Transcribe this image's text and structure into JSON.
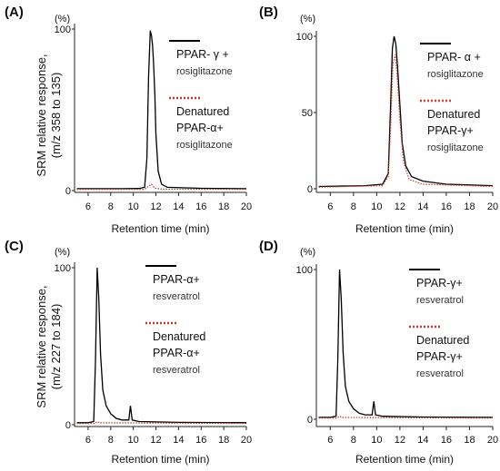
{
  "figure": {
    "ylabel_top": [
      "SRM relative response,",
      "(m/z 358 to 135)"
    ],
    "ylabel_bottom": [
      "SRM relative response,",
      "(m/z 227 to 184)"
    ]
  },
  "chart_data": [
    {
      "panel": "(A)",
      "type": "line",
      "title": "",
      "xlabel": "Retention time (min)",
      "ylabel": "(%)",
      "xlim": [
        4.8,
        20
      ],
      "ylim": [
        0,
        100
      ],
      "x_ticks": [
        6,
        8,
        10,
        12,
        14,
        16,
        18,
        20
      ],
      "y_ticks": [
        0,
        100
      ],
      "legend_position": "right",
      "series": [
        {
          "name": "PPAR- γ + rosiglitazone",
          "legend_lines": [
            "PPAR- γ +",
            "rosiglitazone"
          ],
          "color": "#000000",
          "style": "solid",
          "points": [
            [
              5.0,
              1.2
            ],
            [
              7.0,
              1.2
            ],
            [
              9.0,
              1.2
            ],
            [
              10.5,
              1.3
            ],
            [
              11.0,
              2.0
            ],
            [
              11.2,
              20
            ],
            [
              11.35,
              70
            ],
            [
              11.5,
              99
            ],
            [
              11.6,
              96
            ],
            [
              11.7,
              90
            ],
            [
              11.8,
              78
            ],
            [
              11.9,
              60
            ],
            [
              12.0,
              35
            ],
            [
              12.2,
              12
            ],
            [
              12.5,
              4
            ],
            [
              13.0,
              2
            ],
            [
              16.0,
              1.4
            ],
            [
              20.0,
              1.2
            ]
          ]
        },
        {
          "name": "Denatured PPAR-α+ rosiglitazone",
          "legend_lines": [
            "Denatured",
            "PPAR-α+",
            "rosiglitazone"
          ],
          "color": "#c0392b",
          "style": "dotted",
          "points": [
            [
              5.0,
              0.8
            ],
            [
              11.0,
              0.8
            ],
            [
              11.4,
              3
            ],
            [
              11.6,
              4
            ],
            [
              11.9,
              1.5
            ],
            [
              12.5,
              0.9
            ],
            [
              20.0,
              0.8
            ]
          ]
        }
      ]
    },
    {
      "panel": "(B)",
      "type": "line",
      "title": "",
      "xlabel": "Retention time (min)",
      "ylabel": "(%)",
      "xlim": [
        4.8,
        20
      ],
      "ylim": [
        0,
        100
      ],
      "x_ticks": [
        6,
        8,
        10,
        12,
        14,
        16,
        18,
        20
      ],
      "y_ticks": [
        0,
        50,
        100
      ],
      "legend_position": "right",
      "series": [
        {
          "name": "PPAR- α + rosiglitazone",
          "legend_lines": [
            "PPAR- α +",
            "rosiglitazone"
          ],
          "color": "#000000",
          "style": "solid",
          "points": [
            [
              5.0,
              1.5
            ],
            [
              9.0,
              2
            ],
            [
              10.5,
              3
            ],
            [
              11.0,
              10
            ],
            [
              11.2,
              55
            ],
            [
              11.35,
              92
            ],
            [
              11.5,
              100
            ],
            [
              11.65,
              95
            ],
            [
              11.8,
              80
            ],
            [
              12.0,
              55
            ],
            [
              12.2,
              30
            ],
            [
              12.5,
              15
            ],
            [
              13.0,
              8
            ],
            [
              14.0,
              5
            ],
            [
              16.0,
              3
            ],
            [
              20.0,
              2
            ]
          ]
        },
        {
          "name": "Denatured PPAR-γ+ rosiglitazone",
          "legend_lines": [
            "Denatured",
            "PPAR-γ+",
            "rosiglitazone"
          ],
          "color": "#d04030",
          "style": "dotted",
          "points": [
            [
              5.0,
              1
            ],
            [
              10.5,
              2
            ],
            [
              11.0,
              8
            ],
            [
              11.2,
              40
            ],
            [
              11.4,
              82
            ],
            [
              11.6,
              88
            ],
            [
              11.8,
              70
            ],
            [
              12.0,
              45
            ],
            [
              12.3,
              18
            ],
            [
              12.8,
              6
            ],
            [
              14.0,
              3
            ],
            [
              20.0,
              1.5
            ]
          ]
        }
      ]
    },
    {
      "panel": "(C)",
      "type": "line",
      "title": "",
      "xlabel": "Retention time (min)",
      "ylabel": "(%)",
      "xlim": [
        4.8,
        20
      ],
      "ylim": [
        0,
        100
      ],
      "x_ticks": [
        6,
        8,
        10,
        12,
        14,
        16,
        18,
        20
      ],
      "y_ticks": [
        0,
        100
      ],
      "legend_position": "right",
      "series": [
        {
          "name": "PPAR-α+ resveratrol",
          "legend_lines": [
            "PPAR-α+",
            "resveratrol"
          ],
          "color": "#000000",
          "style": "solid",
          "points": [
            [
              5.0,
              1.3
            ],
            [
              6.0,
              1.3
            ],
            [
              6.5,
              2
            ],
            [
              6.65,
              40
            ],
            [
              6.8,
              100
            ],
            [
              6.95,
              80
            ],
            [
              7.1,
              45
            ],
            [
              7.3,
              22
            ],
            [
              7.6,
              12
            ],
            [
              8.0,
              7
            ],
            [
              8.5,
              4
            ],
            [
              9.0,
              3
            ],
            [
              9.6,
              3
            ],
            [
              9.75,
              12
            ],
            [
              9.9,
              3
            ],
            [
              10.5,
              2
            ],
            [
              14.0,
              1.5
            ],
            [
              20.0,
              1.3
            ]
          ]
        },
        {
          "name": "Denatured PPAR-α+ resveratrol",
          "legend_lines": [
            "Denatured",
            "PPAR-α+",
            "resveratrol"
          ],
          "color": "#c0392b",
          "style": "dotted",
          "points": [
            [
              5.0,
              0.8
            ],
            [
              6.6,
              0.8
            ],
            [
              6.8,
              2
            ],
            [
              7.0,
              1.2
            ],
            [
              20.0,
              0.8
            ]
          ]
        }
      ]
    },
    {
      "panel": "(D)",
      "type": "line",
      "title": "",
      "xlabel": "Retention time (min)",
      "ylabel": "(%)",
      "xlim": [
        4.8,
        20
      ],
      "ylim": [
        0,
        100
      ],
      "x_ticks": [
        6,
        8,
        10,
        12,
        14,
        16,
        18,
        20
      ],
      "y_ticks": [
        0,
        100
      ],
      "legend_position": "right",
      "series": [
        {
          "name": "PPAR-γ+ resveratrol",
          "legend_lines": [
            "PPAR-γ+",
            "resveratrol"
          ],
          "color": "#000000",
          "style": "solid",
          "points": [
            [
              5.0,
              1.3
            ],
            [
              6.0,
              1.3
            ],
            [
              6.5,
              2
            ],
            [
              6.65,
              40
            ],
            [
              6.8,
              100
            ],
            [
              6.95,
              80
            ],
            [
              7.1,
              45
            ],
            [
              7.3,
              22
            ],
            [
              7.6,
              12
            ],
            [
              8.0,
              7
            ],
            [
              8.5,
              4
            ],
            [
              9.0,
              3
            ],
            [
              9.6,
              3
            ],
            [
              9.75,
              12
            ],
            [
              9.9,
              3
            ],
            [
              10.5,
              2
            ],
            [
              14.0,
              1.5
            ],
            [
              20.0,
              1.3
            ]
          ]
        },
        {
          "name": "Denatured PPAR-γ+ resveratrol",
          "legend_lines": [
            "Denatured",
            "PPAR-γ+",
            "resveratrol"
          ],
          "color": "#c0392b",
          "style": "dotted",
          "points": [
            [
              5.0,
              0.8
            ],
            [
              6.6,
              0.8
            ],
            [
              6.8,
              2
            ],
            [
              7.0,
              1.2
            ],
            [
              20.0,
              0.8
            ]
          ]
        }
      ]
    }
  ]
}
